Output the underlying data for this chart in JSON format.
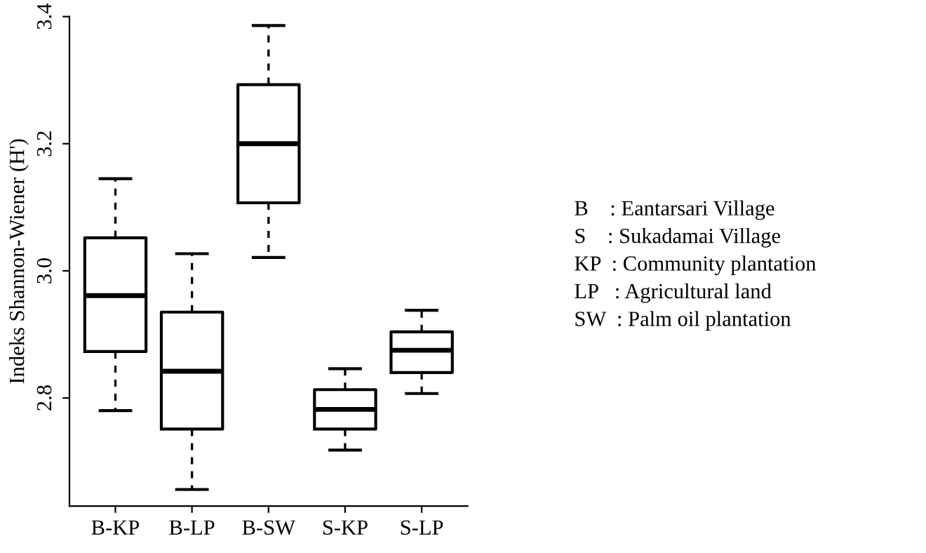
{
  "chart_data": {
    "type": "box",
    "ylabel": "Indeks Shannon-Wiener (H')",
    "categories": [
      "B-KP",
      "B-LP",
      "B-SW",
      "S-KP",
      "S-LP"
    ],
    "boxes": [
      {
        "low": 2.78,
        "q1": 2.873,
        "median": 2.961,
        "q3": 3.052,
        "high": 3.145
      },
      {
        "low": 2.656,
        "q1": 2.751,
        "median": 2.842,
        "q3": 2.935,
        "high": 3.027
      },
      {
        "low": 3.021,
        "q1": 3.107,
        "median": 3.2,
        "q3": 3.293,
        "high": 3.386
      },
      {
        "low": 2.718,
        "q1": 2.751,
        "median": 2.782,
        "q3": 2.813,
        "high": 2.846
      },
      {
        "low": 2.807,
        "q1": 2.84,
        "median": 2.875,
        "q3": 2.904,
        "high": 2.938
      }
    ],
    "ylim": [
      2.63,
      3.4
    ],
    "yticks": [
      2.8,
      {
        "value": 3.0,
        "label": "3.0"
      },
      3.2,
      3.4
    ],
    "annotations": [
      "B    : Eantarsari Village",
      "S    : Sukadamai Village",
      "KP  : Community plantation",
      "LP   : Agricultural land",
      "SW  : Palm oil plantation"
    ]
  }
}
